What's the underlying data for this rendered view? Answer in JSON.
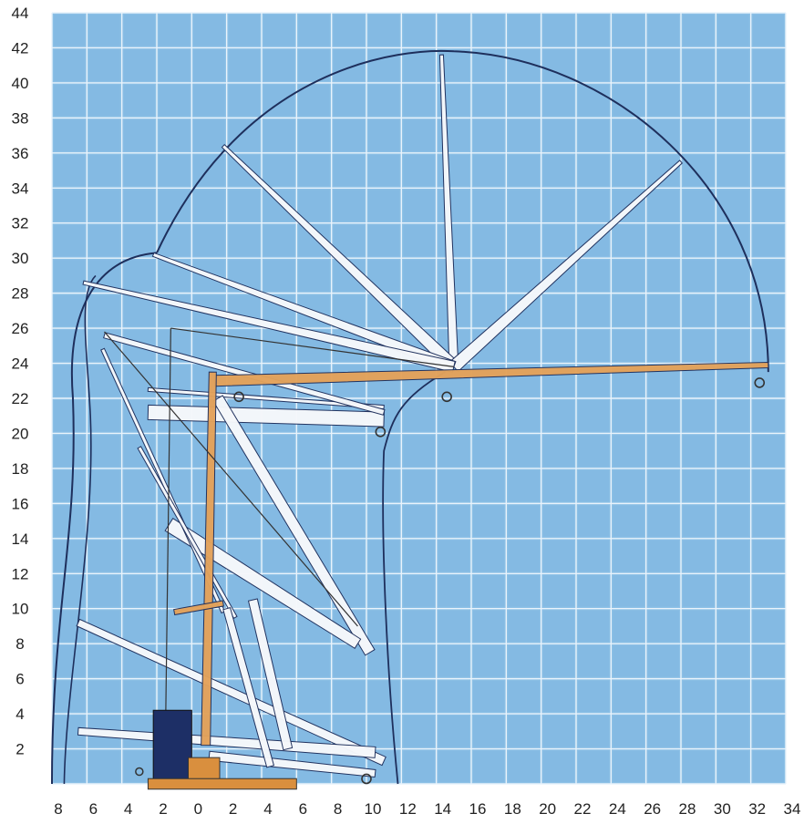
{
  "diagram": {
    "type": "crane working range chart",
    "colors": {
      "grid_background": "#8cc0e6",
      "grid_cell": "#7db4e0",
      "grid_line": "#e9f3fb",
      "envelope": "#1e2f5c",
      "boom_white": "#f6f8fb",
      "boom_active": "#e3a25a",
      "machine_dark": "#1d2f66",
      "machine_base": "#d98f3e",
      "label_text": "#222222"
    },
    "x_ticks": [
      "8",
      "6",
      "4",
      "2",
      "0",
      "2",
      "4",
      "6",
      "8",
      "10",
      "12",
      "14",
      "16",
      "18",
      "20",
      "22",
      "24",
      "26",
      "28",
      "30",
      "32",
      "34"
    ],
    "y_ticks": [
      "44",
      "42",
      "40",
      "38",
      "36",
      "34",
      "32",
      "30",
      "28",
      "26",
      "24",
      "22",
      "20",
      "18",
      "16",
      "14",
      "12",
      "10",
      "8",
      "6",
      "4",
      "2"
    ],
    "x_range_m": [
      -8,
      34
    ],
    "y_range_m": [
      0,
      44
    ]
  }
}
